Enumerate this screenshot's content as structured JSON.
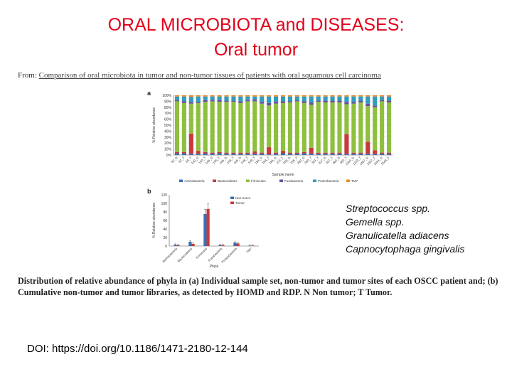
{
  "title": {
    "line1": "ORAL MICROBIOTA and DISEASES:",
    "line2": "Oral tumor"
  },
  "source": {
    "prefix": "From:",
    "link_text": "Comparison of oral microbiota in tumor and non-tumor tissues of patients with oral squamous cell carcinoma"
  },
  "colors": {
    "title": "#e2001a",
    "actinobacteria": "#3a6fb3",
    "bacteroidetes": "#c8393b",
    "firmicutes": "#8fbf3f",
    "fusobacteria": "#6a4f9a",
    "proteobacteria": "#2f9cc0",
    "tm7": "#f08a2a",
    "non_tumor": "#3a6fb3",
    "tumor": "#c8393b"
  },
  "chart_data": [
    {
      "type": "bar",
      "stacked": true,
      "panel": "a.",
      "ylabel": "% Relative abundance",
      "xlabel": "Sample name",
      "ylim": [
        0,
        100
      ],
      "yticks": [
        "0%",
        "10%",
        "20%",
        "30%",
        "40%",
        "50%",
        "60%",
        "70%",
        "80%",
        "90%",
        "100%"
      ],
      "categories": [
        "62_N",
        "62_T",
        "64_T",
        "140_N",
        "140_T",
        "145_N",
        "145_T",
        "146_N",
        "146_T",
        "148_N",
        "148_T",
        "149_T",
        "184_N",
        "184_T",
        "186_N",
        "211_T",
        "255_N",
        "255_T",
        "280_N",
        "280_T",
        "301_T",
        "327_N",
        "327_T",
        "460_N",
        "460_T",
        "1203_N",
        "1203_T",
        "1467_N",
        "1467_T",
        "1544_N",
        "1544_T"
      ],
      "series": [
        {
          "name": "Actinobacteria",
          "values": [
            3,
            3,
            2,
            2,
            3,
            2,
            3,
            2,
            2,
            2,
            2,
            2,
            2,
            1,
            2,
            3,
            2,
            2,
            3,
            2,
            2,
            2,
            2,
            2,
            2,
            2,
            2,
            2,
            2,
            2,
            2
          ]
        },
        {
          "name": "Bacteroidetes",
          "values": [
            2,
            2,
            34,
            5,
            2,
            2,
            2,
            2,
            2,
            2,
            2,
            4,
            2,
            12,
            2,
            4,
            2,
            2,
            2,
            10,
            2,
            2,
            2,
            2,
            33,
            2,
            2,
            20,
            6,
            2,
            2
          ]
        },
        {
          "name": "Firmicutes",
          "values": [
            85,
            82,
            50,
            80,
            84,
            86,
            84,
            85,
            85,
            83,
            86,
            84,
            82,
            70,
            82,
            80,
            84,
            86,
            82,
            72,
            85,
            84,
            84,
            84,
            50,
            82,
            84,
            60,
            72,
            86,
            84
          ]
        },
        {
          "name": "Fusobacteria",
          "values": [
            2,
            3,
            3,
            2,
            3,
            2,
            3,
            2,
            2,
            3,
            2,
            3,
            3,
            4,
            3,
            3,
            2,
            2,
            3,
            4,
            2,
            3,
            3,
            3,
            4,
            3,
            3,
            4,
            3,
            2,
            3
          ]
        },
        {
          "name": "Proteobacteria",
          "values": [
            6,
            8,
            8,
            9,
            6,
            6,
            6,
            7,
            7,
            8,
            6,
            5,
            9,
            11,
            9,
            8,
            8,
            6,
            8,
            10,
            7,
            7,
            7,
            7,
            9,
            9,
            7,
            12,
            15,
            6,
            7
          ]
        },
        {
          "name": "TM7",
          "values": [
            2,
            2,
            3,
            2,
            2,
            2,
            2,
            2,
            2,
            2,
            2,
            2,
            2,
            2,
            2,
            2,
            2,
            2,
            2,
            2,
            2,
            2,
            2,
            2,
            2,
            2,
            2,
            2,
            2,
            2,
            2
          ]
        }
      ],
      "legend": [
        "Actinobacteria",
        "Bacteroidetes",
        "Firmicutes",
        "Fusobacteria",
        "Proteobacteria",
        "TM7"
      ],
      "legend_position": "bottom"
    },
    {
      "type": "bar",
      "panel": "b.",
      "ylabel": "% Relative abundance",
      "xlabel": "Phyla",
      "ylim": [
        0,
        120
      ],
      "yticks": [
        "0",
        "20",
        "40",
        "60",
        "80",
        "100",
        "120"
      ],
      "categories": [
        "Actinobacteria",
        "Bacteroidetes",
        "Firmicutes",
        "Fusobacteria",
        "Proteobacteria",
        "TM7"
      ],
      "series": [
        {
          "name": "Non-tumor",
          "values": [
            3,
            10,
            75,
            2,
            8,
            1
          ]
        },
        {
          "name": "Tumor",
          "values": [
            2,
            5,
            87,
            2,
            6,
            1
          ]
        }
      ],
      "legend_position": "top-right"
    }
  ],
  "species": [
    "Streptococcus spp.",
    "Gemella spp.",
    "Granulicatella adiacens",
    "Capnocytophaga gingivalis"
  ],
  "caption": {
    "line1": "Distribution of relative abundance of phyla in (a) Individual sample set, non-tumor and tumor sites of each OSCC patient and; (b)",
    "line2": "Cumulative non-tumor and tumor libraries, as detected by HOMD and RDP. N  Non tumor; T  Tumor."
  },
  "doi": "DOI: https://doi.org/10.1186/1471-2180-12-144"
}
